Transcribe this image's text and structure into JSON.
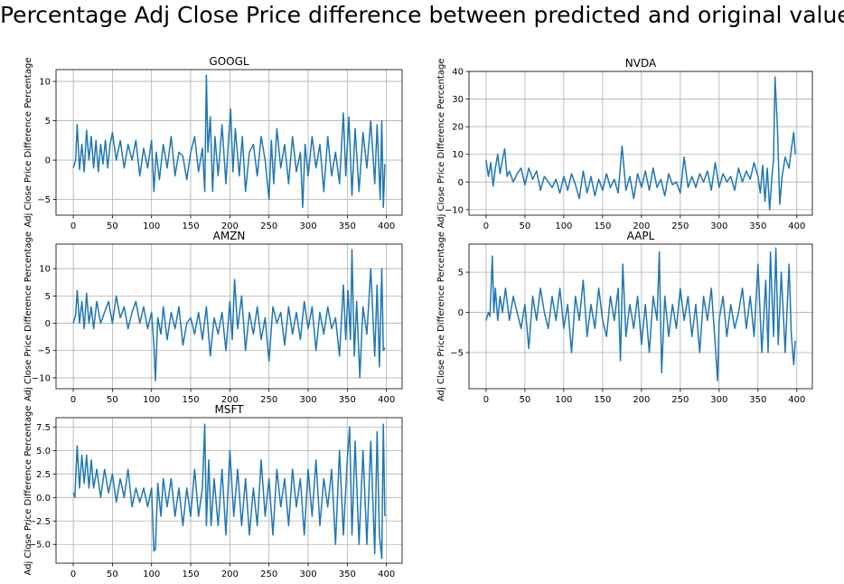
{
  "figure": {
    "title": "Percentage Adj Close Price difference between predicted and original values",
    "line_color": "#1f77b4"
  },
  "chart_data": [
    {
      "type": "line",
      "title": "GOOGL",
      "xlabel": "",
      "ylabel": "Adj Close Price Difference Percentage",
      "grid": true,
      "xlim": [
        -22,
        420
      ],
      "ylim": [
        -7,
        11.5
      ],
      "xticks": [
        0,
        50,
        100,
        150,
        200,
        250,
        300,
        350,
        400
      ],
      "yticks": [
        -5,
        0,
        5,
        10
      ],
      "series": [
        {
          "x": [
            0,
            3,
            5,
            8,
            11,
            14,
            17,
            20,
            23,
            26,
            29,
            32,
            35,
            38,
            41,
            44,
            47,
            50,
            55,
            60,
            65,
            70,
            75,
            80,
            85,
            90,
            95,
            100,
            103,
            106,
            110,
            115,
            120,
            125,
            130,
            135,
            140,
            145,
            150,
            155,
            160,
            165,
            168,
            170,
            172,
            175,
            178,
            181,
            185,
            190,
            195,
            198,
            201,
            204,
            207,
            212,
            216,
            220,
            225,
            230,
            235,
            240,
            245,
            250,
            253,
            256,
            260,
            265,
            270,
            275,
            280,
            285,
            290,
            293,
            296,
            300,
            305,
            310,
            315,
            320,
            325,
            330,
            335,
            340,
            345,
            348,
            352,
            356,
            360,
            365,
            370,
            375,
            380,
            385,
            388,
            392,
            394,
            396,
            398
          ],
          "y": [
            -1,
            0,
            4.5,
            -1.2,
            2,
            -1.5,
            3.8,
            0,
            3,
            -1,
            2.5,
            -1.5,
            2,
            -0.5,
            2.5,
            -1,
            2,
            3.5,
            0,
            2.5,
            -1,
            2,
            0,
            2.5,
            -2,
            1.5,
            -1,
            2.5,
            -4,
            1,
            -2.5,
            2,
            -1,
            3,
            -2,
            1,
            0.5,
            -2.5,
            1,
            3,
            -1.5,
            1.5,
            -4,
            10.8,
            1,
            5.5,
            -4,
            3,
            -2,
            4.5,
            -3,
            2,
            6.5,
            -1.5,
            4,
            -2,
            3,
            -4,
            1,
            2,
            -2,
            3,
            0,
            -5,
            2.5,
            -3,
            4,
            -1,
            2,
            -3,
            3,
            -1.5,
            1,
            -6,
            2,
            -2,
            3,
            -1,
            2,
            -4,
            3,
            -2,
            1,
            -3,
            6,
            -2,
            5.5,
            -4.5,
            4,
            -4,
            3.5,
            -1,
            5,
            -3,
            4.5,
            -5,
            5,
            -6,
            -0.5
          ]
        }
      ]
    },
    {
      "type": "line",
      "title": "NVDA",
      "xlabel": "",
      "ylabel": "Adj Close Price Difference Percentage",
      "grid": true,
      "xlim": [
        -22,
        420
      ],
      "ylim": [
        -12,
        40
      ],
      "xticks": [
        0,
        50,
        100,
        150,
        200,
        250,
        300,
        350,
        400
      ],
      "yticks": [
        -10,
        0,
        10,
        20,
        30,
        40
      ],
      "series": [
        {
          "x": [
            0,
            3,
            6,
            9,
            12,
            15,
            18,
            21,
            24,
            27,
            30,
            35,
            40,
            45,
            50,
            55,
            60,
            65,
            70,
            75,
            80,
            85,
            90,
            95,
            100,
            105,
            110,
            115,
            120,
            125,
            130,
            135,
            140,
            145,
            150,
            155,
            160,
            165,
            170,
            175,
            180,
            185,
            190,
            195,
            200,
            205,
            210,
            215,
            220,
            225,
            230,
            235,
            240,
            245,
            250,
            255,
            260,
            265,
            270,
            275,
            280,
            285,
            290,
            295,
            300,
            305,
            310,
            315,
            320,
            325,
            330,
            335,
            340,
            345,
            350,
            353,
            356,
            359,
            362,
            365,
            368,
            370,
            372,
            375,
            378,
            381,
            385,
            390,
            393,
            396,
            398
          ],
          "y": [
            8,
            2,
            7,
            -1.5,
            5,
            10,
            3,
            8,
            12,
            2,
            4,
            0,
            3,
            5,
            -1,
            5,
            1,
            4,
            -3,
            2,
            0,
            -2,
            1,
            -4,
            2,
            -3,
            3,
            -1,
            -6,
            4,
            -4,
            2,
            -5,
            1,
            -3,
            3,
            -2,
            1,
            -4,
            13,
            -3,
            2,
            -6,
            3,
            -2,
            4,
            -3,
            5,
            -2,
            1,
            -5,
            3,
            -1,
            0,
            -4,
            9,
            -2,
            2,
            -2,
            3,
            0,
            4,
            -3,
            7,
            -2,
            3,
            0,
            2,
            -3,
            5,
            0,
            4,
            1,
            7,
            2,
            -4,
            6,
            -7,
            5,
            -10,
            2,
            8,
            38,
            20,
            -8,
            2,
            9,
            5,
            12,
            18,
            10
          ]
        }
      ]
    },
    {
      "type": "line",
      "title": "AMZN",
      "xlabel": "",
      "ylabel": "Adj Close Price Difference Percentage",
      "grid": true,
      "xlim": [
        -22,
        420
      ],
      "ylim": [
        -12,
        14.5
      ],
      "xticks": [
        0,
        50,
        100,
        150,
        200,
        250,
        300,
        350,
        400
      ],
      "yticks": [
        -10,
        -5,
        0,
        5,
        10
      ],
      "series": [
        {
          "x": [
            0,
            3,
            5,
            8,
            11,
            14,
            17,
            20,
            23,
            26,
            30,
            35,
            40,
            45,
            50,
            55,
            60,
            65,
            70,
            75,
            80,
            85,
            90,
            95,
            100,
            103,
            105,
            108,
            112,
            115,
            120,
            125,
            130,
            135,
            140,
            145,
            150,
            155,
            160,
            165,
            170,
            175,
            180,
            185,
            190,
            195,
            200,
            203,
            206,
            210,
            215,
            220,
            225,
            230,
            235,
            240,
            245,
            250,
            255,
            260,
            265,
            270,
            275,
            280,
            285,
            290,
            295,
            300,
            305,
            310,
            315,
            320,
            325,
            330,
            335,
            340,
            345,
            348,
            351,
            354,
            356,
            359,
            362,
            366,
            370,
            375,
            380,
            385,
            388,
            391,
            394,
            396,
            398
          ],
          "y": [
            0,
            1.5,
            6,
            0,
            4,
            -1,
            5.5,
            0,
            3,
            -1,
            4,
            0,
            2,
            4,
            0,
            5,
            1,
            3,
            -1,
            2,
            4,
            0,
            3,
            -1,
            2,
            -4,
            -10.5,
            1,
            -2,
            3,
            -3,
            2,
            -1,
            3,
            -4,
            0,
            1,
            -2,
            2,
            -3,
            3,
            -6,
            1,
            -2,
            2,
            -5,
            4,
            -3,
            8,
            -1,
            5,
            -5,
            2,
            -2,
            3,
            -3,
            1,
            -7,
            3,
            0,
            2,
            -4,
            3,
            -2,
            2,
            -3,
            4,
            -1,
            3,
            -5,
            2,
            -2,
            3,
            -1,
            1,
            -6,
            7,
            -3,
            6,
            -3,
            13.5,
            -6,
            4,
            -10,
            3,
            -2,
            10,
            -6,
            7,
            -8,
            10,
            -5,
            -4.5
          ]
        }
      ]
    },
    {
      "type": "line",
      "title": "AAPL",
      "xlabel": "",
      "ylabel": "Adj Close Price Difference Percentage",
      "grid": true,
      "xlim": [
        -22,
        420
      ],
      "ylim": [
        -9.5,
        8.5
      ],
      "xticks": [
        0,
        50,
        100,
        150,
        200,
        250,
        300,
        350,
        400
      ],
      "yticks": [
        -5,
        0,
        5
      ],
      "series": [
        {
          "x": [
            0,
            3,
            5,
            8,
            10,
            12,
            15,
            18,
            21,
            25,
            30,
            35,
            40,
            45,
            50,
            55,
            60,
            65,
            70,
            75,
            80,
            85,
            90,
            95,
            100,
            105,
            110,
            115,
            120,
            125,
            130,
            135,
            140,
            145,
            150,
            155,
            160,
            165,
            170,
            173,
            176,
            180,
            185,
            190,
            195,
            200,
            205,
            210,
            215,
            220,
            223,
            226,
            230,
            235,
            240,
            245,
            250,
            255,
            260,
            265,
            270,
            275,
            280,
            285,
            290,
            295,
            298,
            300,
            305,
            310,
            315,
            320,
            325,
            330,
            335,
            340,
            345,
            350,
            355,
            360,
            363,
            366,
            370,
            373,
            376,
            380,
            385,
            390,
            393,
            396,
            398
          ],
          "y": [
            -1,
            0,
            -0.5,
            7,
            0,
            3,
            -1,
            2,
            0,
            3,
            -1,
            2,
            0,
            -2,
            1,
            -4.5,
            2,
            -1,
            3,
            0,
            -2,
            2,
            -1,
            3,
            -2,
            1,
            -5,
            2,
            -1,
            4,
            -3,
            1,
            -2,
            3,
            -1,
            -3,
            2,
            -1,
            3,
            -6,
            6,
            -3,
            1,
            -2,
            2,
            -4,
            1,
            -5,
            2,
            -1,
            7.5,
            -7.5,
            2,
            -3,
            1,
            -2,
            3,
            -1,
            2,
            -3,
            1,
            -5,
            2,
            -1,
            3,
            -4,
            -8.5,
            -1,
            2,
            -3,
            1,
            -2,
            0,
            3,
            -2,
            2,
            -3,
            6,
            -5,
            4,
            -5,
            7.5,
            -3,
            8,
            -4,
            5,
            -5,
            6,
            -3,
            -6.5,
            -3.5
          ]
        }
      ]
    },
    {
      "type": "line",
      "title": "MSFT",
      "xlabel": "",
      "ylabel": "Adj Close Price Difference Percentage",
      "grid": true,
      "xlim": [
        -22,
        420
      ],
      "ylim": [
        -7,
        8.5
      ],
      "xticks": [
        0,
        50,
        100,
        150,
        200,
        250,
        300,
        350,
        400
      ],
      "yticks": [
        -5.0,
        -2.5,
        0.0,
        2.5,
        5.0,
        7.5
      ],
      "series": [
        {
          "x": [
            0,
            2,
            5,
            8,
            11,
            14,
            17,
            20,
            23,
            26,
            30,
            35,
            40,
            45,
            50,
            55,
            60,
            65,
            70,
            75,
            80,
            85,
            90,
            95,
            100,
            103,
            105,
            108,
            112,
            115,
            120,
            125,
            130,
            135,
            140,
            145,
            150,
            155,
            160,
            165,
            168,
            170,
            173,
            176,
            180,
            185,
            190,
            195,
            200,
            205,
            210,
            215,
            220,
            225,
            230,
            235,
            240,
            245,
            250,
            255,
            260,
            265,
            270,
            275,
            280,
            285,
            290,
            295,
            300,
            305,
            310,
            315,
            320,
            325,
            330,
            335,
            340,
            345,
            350,
            353,
            356,
            360,
            365,
            370,
            375,
            380,
            385,
            388,
            391,
            394,
            396,
            398
          ],
          "y": [
            0.5,
            0,
            5.5,
            1,
            4.5,
            1.5,
            4.5,
            1,
            4,
            1,
            3,
            0,
            3,
            0.5,
            2.5,
            -0.5,
            2,
            0,
            3,
            -1,
            1,
            -0.5,
            1,
            -1,
            1,
            -5.7,
            -5.5,
            1.5,
            -2,
            2,
            -1,
            2,
            -2,
            1,
            -3,
            1,
            -2,
            3,
            -2,
            1,
            7.8,
            -3,
            4,
            -3,
            2,
            -3,
            3,
            -4,
            5,
            -2,
            3,
            -3,
            2,
            -4,
            1,
            -3,
            4,
            -2,
            2,
            -4,
            3,
            -1,
            2,
            -3,
            3,
            -1,
            2,
            -4,
            3,
            -2,
            4,
            -3,
            2,
            -1,
            3,
            -5,
            5,
            -4,
            4,
            7.5,
            -4,
            6,
            -5,
            5,
            -5,
            6,
            -6,
            7,
            -4,
            -6.5,
            7.8,
            -2
          ]
        }
      ]
    }
  ]
}
